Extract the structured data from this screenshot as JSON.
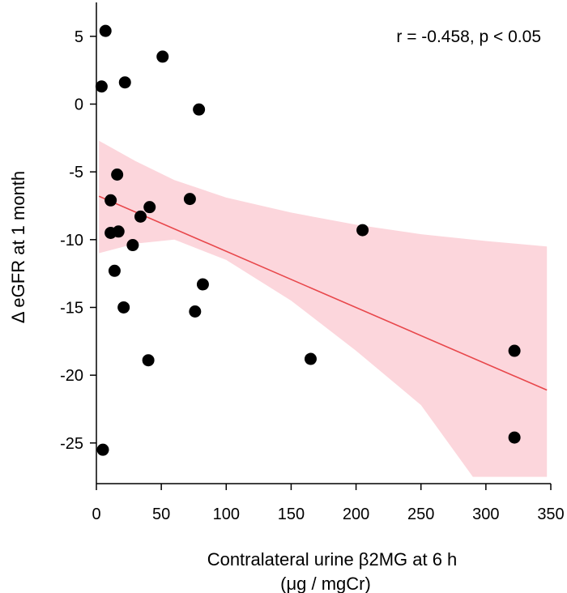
{
  "chart_data": {
    "type": "scatter",
    "title": "",
    "xlabel_line1": "Contralateral urine β2MG at 6 h",
    "xlabel_line2": "(μg / mgCr)",
    "ylabel": "Δ eGFR at 1 month",
    "annotation": "r = -0.458, p < 0.05",
    "xlim": [
      0,
      350
    ],
    "ylim": [
      -28,
      7.5
    ],
    "xticks": [
      0,
      50,
      100,
      150,
      200,
      250,
      300,
      350
    ],
    "xtick_labels": [
      "0",
      "50",
      "100",
      "150",
      "200",
      "250",
      "300",
      "350"
    ],
    "yticks": [
      5,
      0,
      -5,
      -10,
      -15,
      -20,
      -25
    ],
    "ytick_labels": [
      "5",
      "0",
      "-5",
      "-10",
      "-15",
      "-20",
      "-25"
    ],
    "grid": false,
    "points": [
      {
        "x": 7,
        "y": 5.4
      },
      {
        "x": 4,
        "y": 1.3
      },
      {
        "x": 51,
        "y": 3.5
      },
      {
        "x": 22,
        "y": 1.6
      },
      {
        "x": 79,
        "y": -0.4
      },
      {
        "x": 16,
        "y": -5.2
      },
      {
        "x": 11,
        "y": -7.1
      },
      {
        "x": 41,
        "y": -7.6
      },
      {
        "x": 34,
        "y": -8.3
      },
      {
        "x": 72,
        "y": -7.0
      },
      {
        "x": 11,
        "y": -9.5
      },
      {
        "x": 17,
        "y": -9.4
      },
      {
        "x": 28,
        "y": -10.4
      },
      {
        "x": 14,
        "y": -12.3
      },
      {
        "x": 82,
        "y": -13.3
      },
      {
        "x": 21,
        "y": -15.0
      },
      {
        "x": 76,
        "y": -15.3
      },
      {
        "x": 40,
        "y": -18.9
      },
      {
        "x": 165,
        "y": -18.8
      },
      {
        "x": 205,
        "y": -9.3
      },
      {
        "x": 322,
        "y": -18.2
      },
      {
        "x": 322,
        "y": -24.6
      },
      {
        "x": 5,
        "y": -25.5
      }
    ],
    "regression": {
      "x0": 2,
      "y0": -6.8,
      "x1": 347,
      "y1": -21.1
    },
    "confidence_band": {
      "upper": [
        [
          2,
          -2.7
        ],
        [
          30,
          -4.2
        ],
        [
          60,
          -5.6
        ],
        [
          100,
          -6.9
        ],
        [
          150,
          -8.0
        ],
        [
          200,
          -8.9
        ],
        [
          250,
          -9.6
        ],
        [
          300,
          -10.1
        ],
        [
          347,
          -10.5
        ]
      ],
      "lower": [
        [
          2,
          -11.0
        ],
        [
          30,
          -10.3
        ],
        [
          60,
          -10.0
        ],
        [
          100,
          -11.5
        ],
        [
          150,
          -14.5
        ],
        [
          200,
          -18.2
        ],
        [
          250,
          -22.2
        ],
        [
          290,
          -27.5
        ],
        [
          347,
          -27.5
        ]
      ]
    },
    "colors": {
      "points": "#000000",
      "regression_line": "#e8474b",
      "band_fill": "#fcd6dc"
    }
  }
}
